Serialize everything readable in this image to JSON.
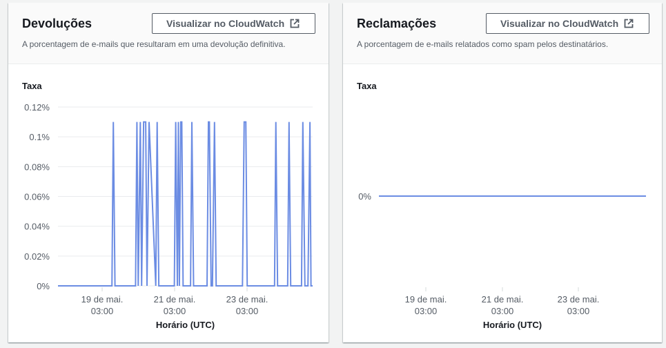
{
  "bounces": {
    "title": "Devoluções",
    "description": "A porcentagem de e-mails que resultaram em uma devolução definitiva.",
    "button_label": "Visualizar no CloudWatch",
    "chart_data": {
      "type": "line",
      "title": "",
      "ylabel": "Taxa",
      "xlabel": "Horário (UTC)",
      "ylim": [
        0,
        0.12
      ],
      "y_unit": "%",
      "yticks": [
        "0.12%",
        "0.1%",
        "0.08%",
        "0.06%",
        "0.04%",
        "0.02%",
        "0%"
      ],
      "xticks": [
        {
          "date": "19 de mai.",
          "time": "03:00"
        },
        {
          "date": "21 de mai.",
          "time": "03:00"
        },
        {
          "date": "23 de mai.",
          "time": "03:00"
        }
      ],
      "grid": true,
      "color": "#6b8ce3",
      "series": [
        {
          "x_days": [
            17.0,
            18.6,
            18.64,
            18.69,
            19.3,
            19.34,
            19.38,
            19.44,
            19.48,
            19.54,
            19.6,
            19.64,
            19.7,
            19.9,
            19.94,
            19.99,
            20.45,
            20.49,
            20.54,
            20.57,
            20.6,
            20.64,
            20.67,
            20.71,
            20.93,
            20.97,
            21.02,
            21.42,
            21.46,
            21.49,
            21.54,
            21.58,
            21.64,
            21.69,
            22.47,
            22.52,
            22.57,
            22.61,
            22.65,
            22.72,
            23.42,
            23.46,
            23.51,
            23.81,
            23.85,
            23.9,
            24.22,
            24.26,
            24.32,
            24.36,
            24.41,
            24.47,
            24.5,
            24.55
          ],
          "values": [
            0,
            0,
            0.11,
            0,
            0,
            0.11,
            0,
            0.11,
            0,
            0.11,
            0.11,
            0,
            0.11,
            0,
            0.11,
            0,
            0,
            0.11,
            0,
            0.11,
            0,
            0.11,
            0.11,
            0,
            0,
            0.11,
            0,
            0,
            0.11,
            0.11,
            0,
            0,
            0.11,
            0,
            0,
            0.11,
            0.11,
            0,
            0,
            0,
            0,
            0.11,
            0,
            0,
            0.11,
            0,
            0,
            0.11,
            0,
            0,
            0,
            0.11,
            0,
            0
          ]
        }
      ]
    }
  },
  "complaints": {
    "title": "Reclamações",
    "description": "A porcentagem de e-mails relatados como spam pelos destinatários.",
    "button_label": "Visualizar no CloudWatch",
    "chart_data": {
      "type": "line",
      "title": "",
      "ylabel": "Taxa",
      "xlabel": "Horário (UTC)",
      "yticks": [
        "0%"
      ],
      "xticks": [
        {
          "date": "19 de mai.",
          "time": "03:00"
        },
        {
          "date": "21 de mai.",
          "time": "03:00"
        },
        {
          "date": "23 de mai.",
          "time": "03:00"
        }
      ],
      "grid": false,
      "color": "#6b8ce3",
      "series": [
        {
          "x_days": [
            17.0,
            24.55
          ],
          "values": [
            0,
            0
          ]
        }
      ]
    }
  }
}
